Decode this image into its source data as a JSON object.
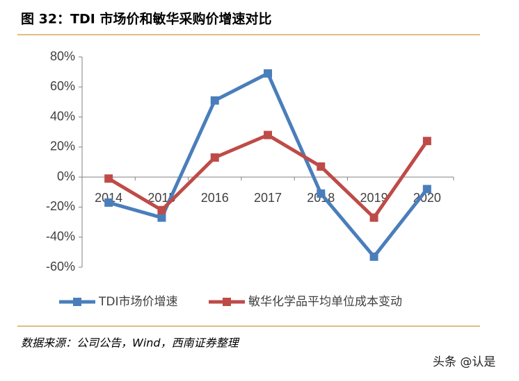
{
  "chart_data": {
    "type": "line",
    "title": "图 32：TDI 市场价和敏华采购价增速对比",
    "categories": [
      "2014",
      "2015",
      "2016",
      "2017",
      "2018",
      "2019",
      "2020"
    ],
    "series": [
      {
        "name": "TDI市场价增速",
        "color": "#4a7ebb",
        "values": [
          -17,
          -27,
          51,
          69,
          -11,
          -53,
          -8
        ]
      },
      {
        "name": "敏华化学品平均单位成本变动",
        "color": "#be4b48",
        "values": [
          -1,
          -22,
          13,
          28,
          7,
          -27,
          24
        ]
      }
    ],
    "ylim": [
      -60,
      80
    ],
    "yticks": [
      {
        "value": -60,
        "label": "-60%"
      },
      {
        "value": -40,
        "label": "-40%"
      },
      {
        "value": -20,
        "label": "-20%"
      },
      {
        "value": 0,
        "label": "0%"
      },
      {
        "value": 20,
        "label": "20%"
      },
      {
        "value": 40,
        "label": "40%"
      },
      {
        "value": 60,
        "label": "60%"
      },
      {
        "value": 80,
        "label": "80%"
      }
    ],
    "grid": false,
    "legend": "bottom",
    "source": "数据来源：公司公告，Wind，西南证券整理",
    "watermark": "头条 @认是"
  }
}
